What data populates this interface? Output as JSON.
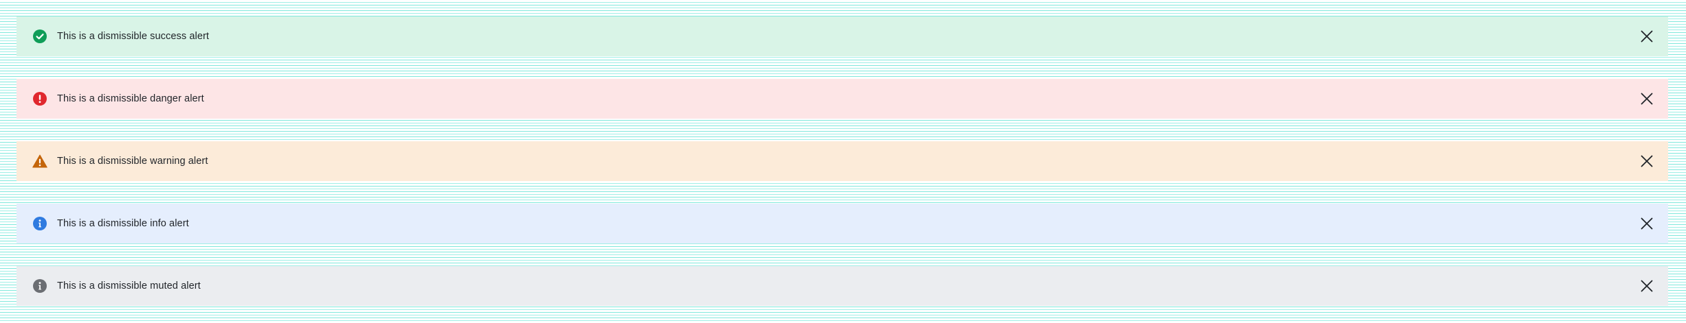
{
  "alerts": [
    {
      "type": "success",
      "message": "This is a dismissible success alert",
      "icon": "check-circle-icon",
      "background": "#d9f4e7",
      "icon_color": "#0f9d58"
    },
    {
      "type": "danger",
      "message": "This is a dismissible danger alert",
      "icon": "exclamation-circle-icon",
      "background": "#fde5e6",
      "icon_color": "#e0282e"
    },
    {
      "type": "warning",
      "message": "This is a dismissible warning alert",
      "icon": "warning-triangle-icon",
      "background": "#fcebd9",
      "icon_color": "#c4650a"
    },
    {
      "type": "info",
      "message": "This is a dismissible info alert",
      "icon": "info-circle-icon",
      "background": "#e5eefd",
      "icon_color": "#2f7be0"
    },
    {
      "type": "muted",
      "message": "This is a dismissible muted alert",
      "icon": "info-circle-icon",
      "background": "#ebedf0",
      "icon_color": "#6b6e73"
    }
  ],
  "close_icon": "close-icon"
}
